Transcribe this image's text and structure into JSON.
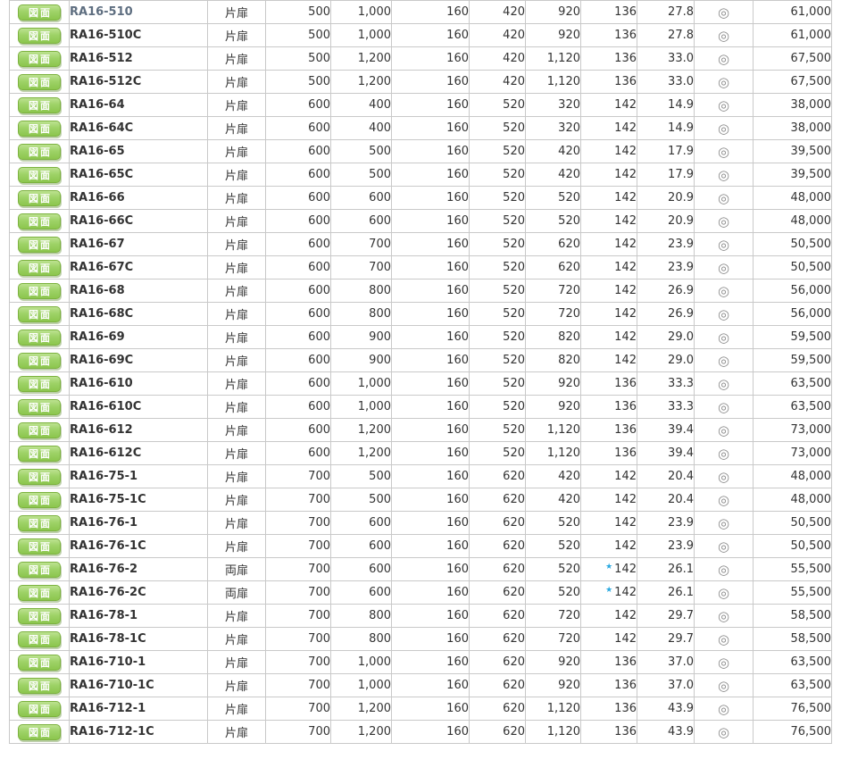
{
  "table": {
    "button_label": "図面",
    "mark_symbol": "◎",
    "star_symbol": "★",
    "colors": {
      "button_green": "#8cc64e",
      "button_border_green": "#7cb23f",
      "star_blue": "#2aa9e0",
      "grid_border": "#c9c9c9",
      "text": "#333333",
      "visited_model_link": "#5e6e80",
      "mark_gray": "#8b8b8b"
    },
    "door_types": {
      "single": "片扉",
      "double": "両扉"
    },
    "rows": [
      {
        "model": "RA16-510",
        "visited": true,
        "door": "片扉",
        "values": [
          "500",
          "1,000",
          "160",
          "420",
          "920",
          "136",
          "27.8"
        ],
        "star": false,
        "mark": "◎",
        "price": "61,000"
      },
      {
        "model": "RA16-510C",
        "visited": false,
        "door": "片扉",
        "values": [
          "500",
          "1,000",
          "160",
          "420",
          "920",
          "136",
          "27.8"
        ],
        "star": false,
        "mark": "◎",
        "price": "61,000"
      },
      {
        "model": "RA16-512",
        "visited": false,
        "door": "片扉",
        "values": [
          "500",
          "1,200",
          "160",
          "420",
          "1,120",
          "136",
          "33.0"
        ],
        "star": false,
        "mark": "◎",
        "price": "67,500"
      },
      {
        "model": "RA16-512C",
        "visited": false,
        "door": "片扉",
        "values": [
          "500",
          "1,200",
          "160",
          "420",
          "1,120",
          "136",
          "33.0"
        ],
        "star": false,
        "mark": "◎",
        "price": "67,500"
      },
      {
        "model": "RA16-64",
        "visited": false,
        "door": "片扉",
        "values": [
          "600",
          "400",
          "160",
          "520",
          "320",
          "142",
          "14.9"
        ],
        "star": false,
        "mark": "◎",
        "price": "38,000"
      },
      {
        "model": "RA16-64C",
        "visited": false,
        "door": "片扉",
        "values": [
          "600",
          "400",
          "160",
          "520",
          "320",
          "142",
          "14.9"
        ],
        "star": false,
        "mark": "◎",
        "price": "38,000"
      },
      {
        "model": "RA16-65",
        "visited": false,
        "door": "片扉",
        "values": [
          "600",
          "500",
          "160",
          "520",
          "420",
          "142",
          "17.9"
        ],
        "star": false,
        "mark": "◎",
        "price": "39,500"
      },
      {
        "model": "RA16-65C",
        "visited": false,
        "door": "片扉",
        "values": [
          "600",
          "500",
          "160",
          "520",
          "420",
          "142",
          "17.9"
        ],
        "star": false,
        "mark": "◎",
        "price": "39,500"
      },
      {
        "model": "RA16-66",
        "visited": false,
        "door": "片扉",
        "values": [
          "600",
          "600",
          "160",
          "520",
          "520",
          "142",
          "20.9"
        ],
        "star": false,
        "mark": "◎",
        "price": "48,000"
      },
      {
        "model": "RA16-66C",
        "visited": false,
        "door": "片扉",
        "values": [
          "600",
          "600",
          "160",
          "520",
          "520",
          "142",
          "20.9"
        ],
        "star": false,
        "mark": "◎",
        "price": "48,000"
      },
      {
        "model": "RA16-67",
        "visited": false,
        "door": "片扉",
        "values": [
          "600",
          "700",
          "160",
          "520",
          "620",
          "142",
          "23.9"
        ],
        "star": false,
        "mark": "◎",
        "price": "50,500"
      },
      {
        "model": "RA16-67C",
        "visited": false,
        "door": "片扉",
        "values": [
          "600",
          "700",
          "160",
          "520",
          "620",
          "142",
          "23.9"
        ],
        "star": false,
        "mark": "◎",
        "price": "50,500"
      },
      {
        "model": "RA16-68",
        "visited": false,
        "door": "片扉",
        "values": [
          "600",
          "800",
          "160",
          "520",
          "720",
          "142",
          "26.9"
        ],
        "star": false,
        "mark": "◎",
        "price": "56,000"
      },
      {
        "model": "RA16-68C",
        "visited": false,
        "door": "片扉",
        "values": [
          "600",
          "800",
          "160",
          "520",
          "720",
          "142",
          "26.9"
        ],
        "star": false,
        "mark": "◎",
        "price": "56,000"
      },
      {
        "model": "RA16-69",
        "visited": false,
        "door": "片扉",
        "values": [
          "600",
          "900",
          "160",
          "520",
          "820",
          "142",
          "29.0"
        ],
        "star": false,
        "mark": "◎",
        "price": "59,500"
      },
      {
        "model": "RA16-69C",
        "visited": false,
        "door": "片扉",
        "values": [
          "600",
          "900",
          "160",
          "520",
          "820",
          "142",
          "29.0"
        ],
        "star": false,
        "mark": "◎",
        "price": "59,500"
      },
      {
        "model": "RA16-610",
        "visited": false,
        "door": "片扉",
        "values": [
          "600",
          "1,000",
          "160",
          "520",
          "920",
          "136",
          "33.3"
        ],
        "star": false,
        "mark": "◎",
        "price": "63,500"
      },
      {
        "model": "RA16-610C",
        "visited": false,
        "door": "片扉",
        "values": [
          "600",
          "1,000",
          "160",
          "520",
          "920",
          "136",
          "33.3"
        ],
        "star": false,
        "mark": "◎",
        "price": "63,500"
      },
      {
        "model": "RA16-612",
        "visited": false,
        "door": "片扉",
        "values": [
          "600",
          "1,200",
          "160",
          "520",
          "1,120",
          "136",
          "39.4"
        ],
        "star": false,
        "mark": "◎",
        "price": "73,000"
      },
      {
        "model": "RA16-612C",
        "visited": false,
        "door": "片扉",
        "values": [
          "600",
          "1,200",
          "160",
          "520",
          "1,120",
          "136",
          "39.4"
        ],
        "star": false,
        "mark": "◎",
        "price": "73,000"
      },
      {
        "model": "RA16-75-1",
        "visited": false,
        "door": "片扉",
        "values": [
          "700",
          "500",
          "160",
          "620",
          "420",
          "142",
          "20.4"
        ],
        "star": false,
        "mark": "◎",
        "price": "48,000"
      },
      {
        "model": "RA16-75-1C",
        "visited": false,
        "door": "片扉",
        "values": [
          "700",
          "500",
          "160",
          "620",
          "420",
          "142",
          "20.4"
        ],
        "star": false,
        "mark": "◎",
        "price": "48,000"
      },
      {
        "model": "RA16-76-1",
        "visited": false,
        "door": "片扉",
        "values": [
          "700",
          "600",
          "160",
          "620",
          "520",
          "142",
          "23.9"
        ],
        "star": false,
        "mark": "◎",
        "price": "50,500"
      },
      {
        "model": "RA16-76-1C",
        "visited": false,
        "door": "片扉",
        "values": [
          "700",
          "600",
          "160",
          "620",
          "520",
          "142",
          "23.9"
        ],
        "star": false,
        "mark": "◎",
        "price": "50,500"
      },
      {
        "model": "RA16-76-2",
        "visited": false,
        "door": "両扉",
        "values": [
          "700",
          "600",
          "160",
          "620",
          "520",
          "142",
          "26.1"
        ],
        "star": true,
        "mark": "◎",
        "price": "55,500"
      },
      {
        "model": "RA16-76-2C",
        "visited": false,
        "door": "両扉",
        "values": [
          "700",
          "600",
          "160",
          "620",
          "520",
          "142",
          "26.1"
        ],
        "star": true,
        "mark": "◎",
        "price": "55,500"
      },
      {
        "model": "RA16-78-1",
        "visited": false,
        "door": "片扉",
        "values": [
          "700",
          "800",
          "160",
          "620",
          "720",
          "142",
          "29.7"
        ],
        "star": false,
        "mark": "◎",
        "price": "58,500"
      },
      {
        "model": "RA16-78-1C",
        "visited": false,
        "door": "片扉",
        "values": [
          "700",
          "800",
          "160",
          "620",
          "720",
          "142",
          "29.7"
        ],
        "star": false,
        "mark": "◎",
        "price": "58,500"
      },
      {
        "model": "RA16-710-1",
        "visited": false,
        "door": "片扉",
        "values": [
          "700",
          "1,000",
          "160",
          "620",
          "920",
          "136",
          "37.0"
        ],
        "star": false,
        "mark": "◎",
        "price": "63,500"
      },
      {
        "model": "RA16-710-1C",
        "visited": false,
        "door": "片扉",
        "values": [
          "700",
          "1,000",
          "160",
          "620",
          "920",
          "136",
          "37.0"
        ],
        "star": false,
        "mark": "◎",
        "price": "63,500"
      },
      {
        "model": "RA16-712-1",
        "visited": false,
        "door": "片扉",
        "values": [
          "700",
          "1,200",
          "160",
          "620",
          "1,120",
          "136",
          "43.9"
        ],
        "star": false,
        "mark": "◎",
        "price": "76,500"
      },
      {
        "model": "RA16-712-1C",
        "visited": false,
        "door": "片扉",
        "values": [
          "700",
          "1,200",
          "160",
          "620",
          "1,120",
          "136",
          "43.9"
        ],
        "star": false,
        "mark": "◎",
        "price": "76,500"
      }
    ]
  }
}
